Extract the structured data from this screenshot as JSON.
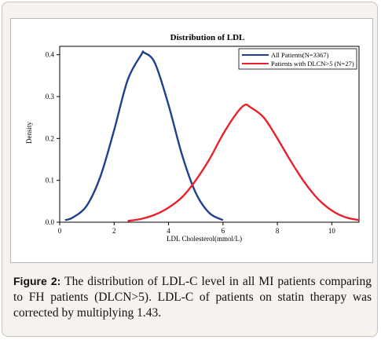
{
  "chart_data": {
    "type": "line",
    "title": "Distribution of LDL",
    "xlabel": "LDL Cholesterol(mmol/L)",
    "ylabel": "Density",
    "xlim": [
      0,
      11
    ],
    "ylim": [
      0,
      0.42
    ],
    "xticks": [
      "0",
      "2",
      "4",
      "6",
      "8",
      "10"
    ],
    "yticks": [
      "0.0",
      "0.1",
      "0.2",
      "0.3",
      "0.4"
    ],
    "legend_position": "top-right",
    "series": [
      {
        "name": "All Patients(N=3367)",
        "color": "#1f3f8f",
        "x": [
          0.2,
          0.5,
          1.0,
          1.5,
          2.0,
          2.5,
          3.0,
          3.1,
          3.5,
          4.0,
          4.5,
          5.0,
          5.5,
          6.0
        ],
        "y": [
          0.005,
          0.012,
          0.04,
          0.11,
          0.22,
          0.34,
          0.4,
          0.405,
          0.38,
          0.28,
          0.16,
          0.07,
          0.022,
          0.005
        ]
      },
      {
        "name": "Patients with DLCN>5 (N=27)",
        "color": "#e8212a",
        "x": [
          2.5,
          3.0,
          3.5,
          4.0,
          4.5,
          5.0,
          5.5,
          6.0,
          6.5,
          6.8,
          7.0,
          7.5,
          8.0,
          8.5,
          9.0,
          9.5,
          10.0,
          10.5,
          11.0
        ],
        "y": [
          0.003,
          0.008,
          0.018,
          0.035,
          0.06,
          0.1,
          0.15,
          0.21,
          0.26,
          0.28,
          0.275,
          0.25,
          0.2,
          0.145,
          0.095,
          0.055,
          0.028,
          0.012,
          0.005
        ]
      }
    ]
  },
  "caption": {
    "label": "Figure 2:",
    "text": "The distribution of LDL-C level in all MI patients comparing to FH patients (DLCN>5). LDL-C of patients on statin therapy was corrected by multiplying 1.43."
  }
}
